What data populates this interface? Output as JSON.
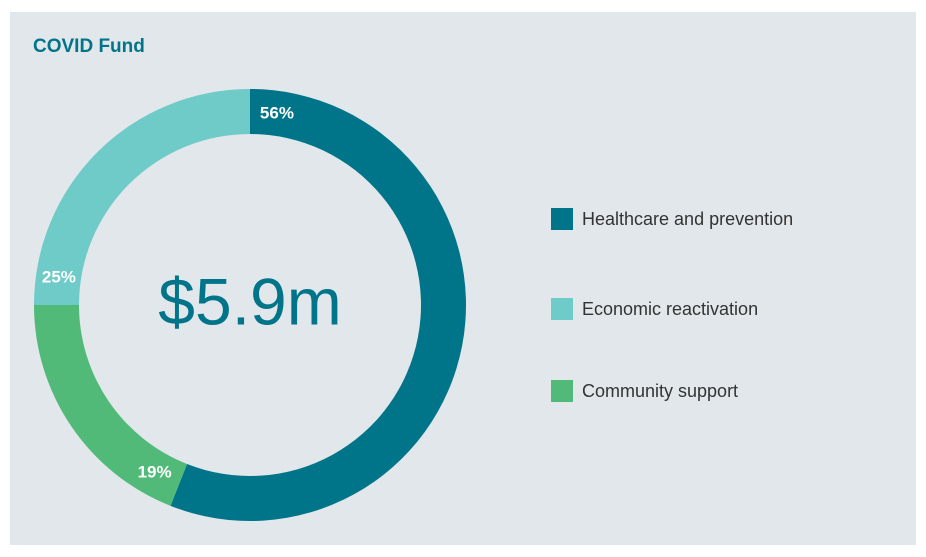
{
  "chart_data": {
    "type": "donut",
    "title": "COVID Fund",
    "center_label": "$5.9m",
    "categories": [
      "Healthcare and prevention",
      "Economic reactivation",
      "Community support"
    ],
    "values": [
      56,
      25,
      19
    ],
    "value_labels": [
      "56%",
      "25%",
      "19%"
    ],
    "colors": [
      "#00758a",
      "#6ecbc8",
      "#52ba78"
    ],
    "draw_order": [
      0,
      2,
      1
    ],
    "legend": "right"
  }
}
